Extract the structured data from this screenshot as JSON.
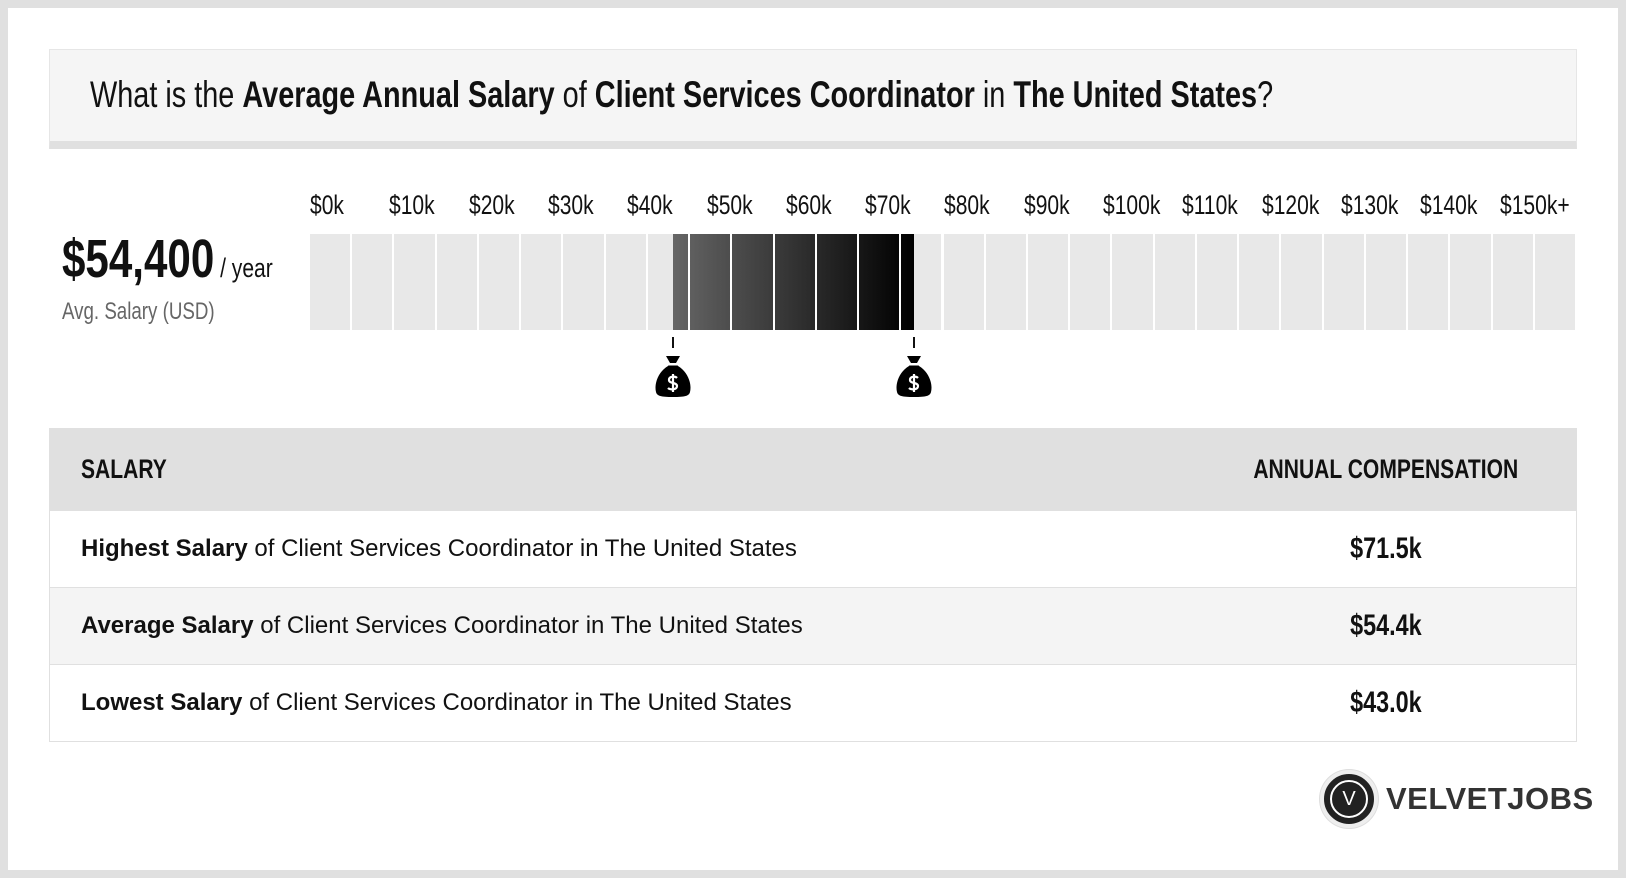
{
  "header": {
    "q1": "What is the ",
    "b1": "Average Annual Salary",
    "q2": " of ",
    "b2": "Client Services Coordinator",
    "q3": " in ",
    "b3": "The United States",
    "q4": "?"
  },
  "summary": {
    "amount": "$54,400",
    "per": " / year",
    "label": "Avg. Salary (USD)"
  },
  "chart_data": {
    "type": "range-bar",
    "tick_labels": [
      "$0k",
      "$10k",
      "$20k",
      "$30k",
      "$40k",
      "$50k",
      "$60k",
      "$70k",
      "$80k",
      "$90k",
      "$100k",
      "$110k",
      "$120k",
      "$130k",
      "$140k",
      "$150k+"
    ],
    "xlim": [
      0,
      150
    ],
    "unit": "$k",
    "segment_step": 5,
    "range": {
      "low": 43.0,
      "high": 71.5,
      "average": 54.4
    },
    "colors": {
      "empty": "#e8e8e8",
      "fill_start": "#666666",
      "fill_end": "#000000"
    },
    "markers": [
      {
        "value": 43.0,
        "icon": "money-bag-icon"
      },
      {
        "value": 71.5,
        "icon": "money-bag-icon"
      }
    ]
  },
  "table": {
    "headers": [
      "SALARY",
      "ANNUAL COMPENSATION"
    ],
    "rows": [
      {
        "bold": "Highest Salary",
        "rest": " of Client Services Coordinator in The United States",
        "value": "$71.5k"
      },
      {
        "bold": "Average Salary",
        "rest": " of Client Services Coordinator in The United States",
        "value": "$54.4k"
      },
      {
        "bold": "Lowest Salary",
        "rest": " of Client Services Coordinator in The United States",
        "value": "$43.0k"
      }
    ]
  },
  "logo": {
    "mark": "V",
    "text": "VELVETJOBS"
  }
}
